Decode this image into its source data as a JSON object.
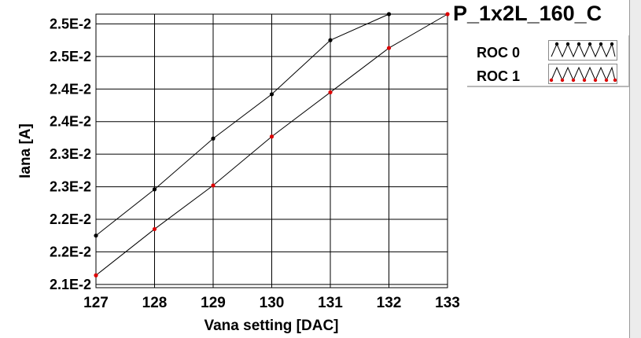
{
  "chart_data": {
    "type": "line",
    "title": "P_1x2L_160_C",
    "xlabel": "Vana setting [DAC]",
    "ylabel": "Iana [A]",
    "x": [
      127,
      128,
      129,
      130,
      131,
      132,
      133
    ],
    "xlim": [
      127,
      133
    ],
    "ylim": [
      0.02105,
      0.02525
    ],
    "x_ticks": [
      "127",
      "128",
      "129",
      "130",
      "131",
      "132",
      "133"
    ],
    "y_tick_values": [
      0.0211,
      0.0216,
      0.0221,
      0.0226,
      0.0231,
      0.0236,
      0.0241,
      0.0246,
      0.0251
    ],
    "y_tick_labels": [
      "2.1E-2",
      "2.2E-2",
      "2.2E-2",
      "2.3E-2",
      "2.3E-2",
      "2.4E-2",
      "2.4E-2",
      "2.5E-2",
      "2.5E-2"
    ],
    "grid": true,
    "legend_position": "top-right",
    "series": [
      {
        "name": "ROC 0",
        "color": "#000000",
        "marker_color": "#000000",
        "values": [
          0.02185,
          0.02256,
          0.02334,
          0.02402,
          0.02485,
          0.02547,
          null
        ]
      },
      {
        "name": "ROC 1",
        "color": "#000000",
        "marker_color": "#dd0000",
        "values": [
          0.02124,
          0.02195,
          0.02262,
          0.02337,
          0.02405,
          0.02473,
          0.02575
        ]
      }
    ]
  }
}
